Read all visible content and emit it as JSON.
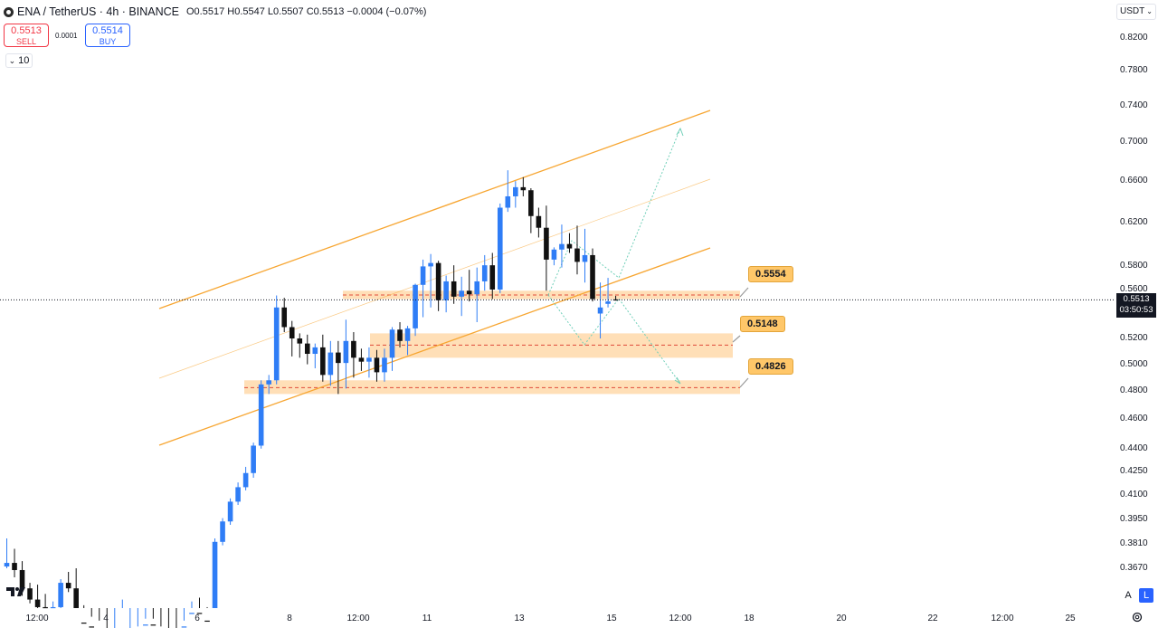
{
  "header": {
    "symbol": "ENA / TetherUS · 4h · BINANCE",
    "ohlc": "O0.5517 H0.5547 L0.5507 C0.5513 −0.0004 (−0.07%)"
  },
  "trade": {
    "sell_price": "0.5513",
    "sell_label": "SELL",
    "spread": "0.0001",
    "buy_price": "0.5514",
    "buy_label": "BUY"
  },
  "volume_toggle": "10",
  "currency": "USDT",
  "last_price": {
    "price": "0.5513",
    "countdown": "03:50:53"
  },
  "scale_buttons": {
    "auto": "A",
    "log": "L"
  },
  "annotations": [
    {
      "id": "r1",
      "text": "0.5554"
    },
    {
      "id": "r2",
      "text": "0.5148"
    },
    {
      "id": "r3",
      "text": "0.4826"
    }
  ],
  "colors": {
    "up": "#2f7df6",
    "down": "#111111",
    "channel": "#f7a632",
    "zone": "#ffd9aa",
    "zone_line": "#e04b3a",
    "projection": "#6fcfb8",
    "last_line": "#131722"
  },
  "chart_data": {
    "type": "candlestick",
    "symbol": "ENA/USDT",
    "interval": "4h",
    "y_axis": {
      "scale": "log",
      "ticks": [
        "0.8200",
        "0.7800",
        "0.7400",
        "0.7000",
        "0.6600",
        "0.6200",
        "0.5800",
        "0.5600",
        "0.5200",
        "0.5000",
        "0.4800",
        "0.4600",
        "0.4400",
        "0.4250",
        "0.4100",
        "0.3950",
        "0.3810",
        "0.3670"
      ]
    },
    "x_axis": {
      "ticks": [
        "12:00",
        "4",
        "6",
        "8",
        "12:00",
        "11",
        "13",
        "15",
        "12:00",
        "18",
        "20",
        "22",
        "12:00",
        "25"
      ]
    },
    "candles": [
      [
        0.368,
        0.384,
        0.367,
        0.37
      ],
      [
        0.37,
        0.378,
        0.362,
        0.366
      ],
      [
        0.366,
        0.371,
        0.352,
        0.356
      ],
      [
        0.356,
        0.359,
        0.348,
        0.35
      ],
      [
        0.35,
        0.358,
        0.344,
        0.346
      ],
      [
        0.346,
        0.353,
        0.34,
        0.343
      ],
      [
        0.343,
        0.349,
        0.34,
        0.346
      ],
      [
        0.346,
        0.361,
        0.344,
        0.359
      ],
      [
        0.359,
        0.365,
        0.354,
        0.356
      ],
      [
        0.356,
        0.367,
        0.335,
        0.338
      ],
      [
        0.338,
        0.347,
        0.332,
        0.336
      ],
      [
        0.336,
        0.341,
        0.33,
        0.333
      ],
      [
        0.333,
        0.339,
        0.326,
        0.33
      ],
      [
        0.33,
        0.333,
        0.323,
        0.324
      ],
      [
        0.324,
        0.33,
        0.321,
        0.327
      ],
      [
        0.327,
        0.35,
        0.324,
        0.329
      ],
      [
        0.329,
        0.335,
        0.325,
        0.332
      ],
      [
        0.332,
        0.336,
        0.327,
        0.333
      ],
      [
        0.333,
        0.34,
        0.329,
        0.337
      ],
      [
        0.337,
        0.34,
        0.332,
        0.334
      ],
      [
        0.334,
        0.336,
        0.326,
        0.328
      ],
      [
        0.328,
        0.331,
        0.322,
        0.325
      ],
      [
        0.325,
        0.328,
        0.319,
        0.321
      ],
      [
        0.321,
        0.339,
        0.319,
        0.336
      ],
      [
        0.336,
        0.349,
        0.334,
        0.343
      ],
      [
        0.343,
        0.351,
        0.337,
        0.339
      ],
      [
        0.339,
        0.346,
        0.33,
        0.333
      ],
      [
        0.333,
        0.384,
        0.331,
        0.382
      ],
      [
        0.382,
        0.396,
        0.38,
        0.394
      ],
      [
        0.394,
        0.408,
        0.392,
        0.406
      ],
      [
        0.406,
        0.418,
        0.404,
        0.415
      ],
      [
        0.415,
        0.428,
        0.413,
        0.424
      ],
      [
        0.424,
        0.444,
        0.421,
        0.442
      ],
      [
        0.442,
        0.488,
        0.44,
        0.485
      ],
      [
        0.485,
        0.492,
        0.478,
        0.488
      ],
      [
        0.488,
        0.555,
        0.485,
        0.545
      ],
      [
        0.545,
        0.553,
        0.525,
        0.529
      ],
      [
        0.529,
        0.534,
        0.506,
        0.52
      ],
      [
        0.52,
        0.524,
        0.505,
        0.516
      ],
      [
        0.516,
        0.523,
        0.5,
        0.508
      ],
      [
        0.508,
        0.516,
        0.497,
        0.513
      ],
      [
        0.513,
        0.523,
        0.487,
        0.492
      ],
      [
        0.492,
        0.518,
        0.484,
        0.509
      ],
      [
        0.509,
        0.518,
        0.478,
        0.501
      ],
      [
        0.501,
        0.535,
        0.482,
        0.518
      ],
      [
        0.518,
        0.525,
        0.49,
        0.505
      ],
      [
        0.505,
        0.512,
        0.495,
        0.502
      ],
      [
        0.502,
        0.513,
        0.49,
        0.505
      ],
      [
        0.505,
        0.511,
        0.487,
        0.494
      ],
      [
        0.494,
        0.512,
        0.487,
        0.505
      ],
      [
        0.505,
        0.529,
        0.495,
        0.527
      ],
      [
        0.527,
        0.533,
        0.513,
        0.518
      ],
      [
        0.518,
        0.53,
        0.507,
        0.528
      ],
      [
        0.528,
        0.565,
        0.522,
        0.564
      ],
      [
        0.564,
        0.586,
        0.537,
        0.58
      ],
      [
        0.58,
        0.591,
        0.545,
        0.583
      ],
      [
        0.583,
        0.585,
        0.542,
        0.551
      ],
      [
        0.551,
        0.572,
        0.541,
        0.567
      ],
      [
        0.567,
        0.581,
        0.548,
        0.554
      ],
      [
        0.554,
        0.571,
        0.538,
        0.559
      ],
      [
        0.559,
        0.577,
        0.55,
        0.556
      ],
      [
        0.556,
        0.579,
        0.533,
        0.567
      ],
      [
        0.567,
        0.59,
        0.559,
        0.581
      ],
      [
        0.581,
        0.592,
        0.552,
        0.56
      ],
      [
        0.56,
        0.638,
        0.557,
        0.634
      ],
      [
        0.634,
        0.671,
        0.63,
        0.645
      ],
      [
        0.645,
        0.66,
        0.634,
        0.654
      ],
      [
        0.654,
        0.664,
        0.645,
        0.651
      ],
      [
        0.651,
        0.653,
        0.61,
        0.626
      ],
      [
        0.626,
        0.634,
        0.606,
        0.615
      ],
      [
        0.615,
        0.636,
        0.559,
        0.586
      ],
      [
        0.586,
        0.597,
        0.581,
        0.595
      ],
      [
        0.595,
        0.618,
        0.579,
        0.6
      ],
      [
        0.6,
        0.61,
        0.592,
        0.596
      ],
      [
        0.596,
        0.617,
        0.573,
        0.584
      ],
      [
        0.584,
        0.614,
        0.566,
        0.59
      ],
      [
        0.59,
        0.596,
        0.55,
        0.552
      ],
      [
        0.54,
        0.566,
        0.52,
        0.545
      ],
      [
        0.548,
        0.57,
        0.545,
        0.55
      ],
      [
        0.5517,
        0.5547,
        0.5507,
        0.5513
      ]
    ],
    "channel": {
      "type": "parallel channel",
      "direction": "ascending"
    },
    "zones": [
      {
        "label": "0.5554",
        "from": 0.552,
        "to": 0.559
      },
      {
        "label": "0.5148",
        "from": 0.505,
        "to": 0.524
      },
      {
        "label": "0.4826",
        "from": 0.478,
        "to": 0.488
      }
    ],
    "projections": [
      {
        "path": [
          0.5513,
          0.526,
          0.62,
          0.567,
          0.72
        ],
        "direction": "up"
      },
      {
        "path": [
          0.5513,
          0.526,
          0.56,
          0.4826
        ],
        "direction": "down"
      }
    ]
  }
}
